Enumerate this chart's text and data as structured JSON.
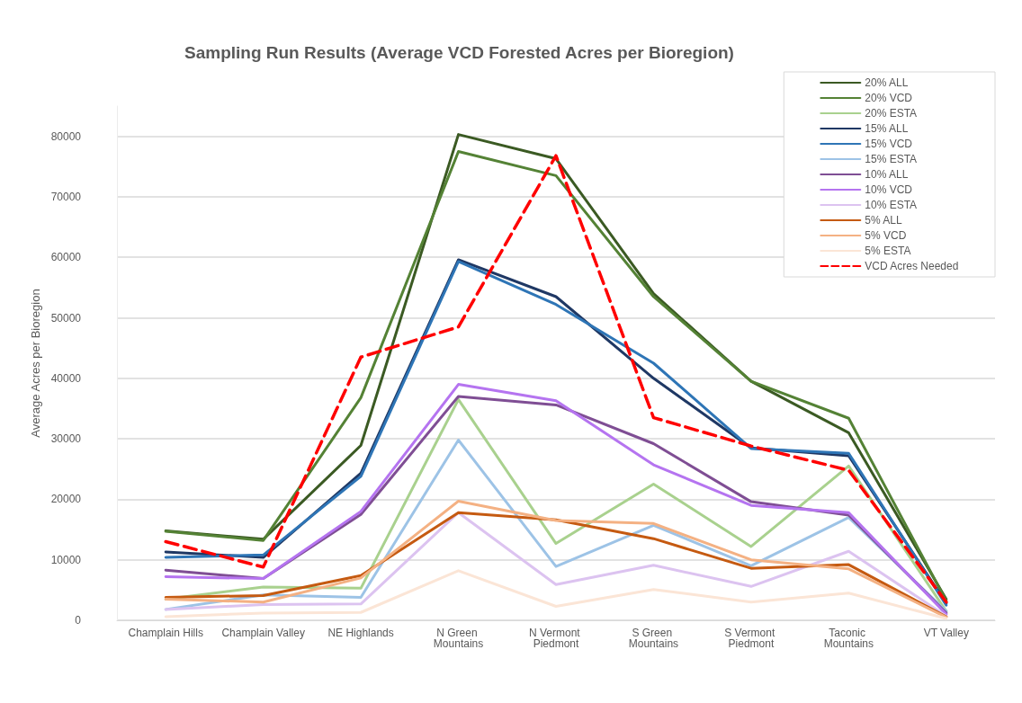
{
  "chart_data": {
    "type": "line",
    "title": "Sampling Run Results (Average VCD Forested Acres per Bioregion)",
    "ylabel": "Average Acres per Bioregion",
    "categories": [
      "Champlain Hills",
      "Champlain Valley",
      "NE Highlands",
      "N Green Mountains",
      "N Vermont Piedmont",
      "S Green Mountains",
      "S Vermont Piedmont",
      "Taconic Mountains",
      "VT Valley"
    ],
    "series": [
      {
        "name": "20% ALL",
        "color": "#3b5a23",
        "values": [
          14800,
          13400,
          28900,
          80300,
          76300,
          54000,
          39500,
          31000,
          3500
        ]
      },
      {
        "name": "20% VCD",
        "color": "#548235",
        "values": [
          14700,
          13200,
          36800,
          77500,
          73500,
          53500,
          39500,
          33400,
          3200
        ]
      },
      {
        "name": "20% ESTA",
        "color": "#a9d18e",
        "values": [
          3500,
          5500,
          5300,
          36500,
          12700,
          22500,
          12200,
          25500,
          1500
        ]
      },
      {
        "name": "15% ALL",
        "color": "#1f3864",
        "values": [
          11300,
          10400,
          24300,
          59600,
          53500,
          40000,
          28500,
          27200,
          2800
        ]
      },
      {
        "name": "15% VCD",
        "color": "#2e75b6",
        "values": [
          10400,
          10800,
          23800,
          59300,
          52200,
          42500,
          28400,
          27600,
          2500
        ]
      },
      {
        "name": "15% ESTA",
        "color": "#9dc3e6",
        "values": [
          1800,
          4200,
          3800,
          29800,
          8900,
          15700,
          9000,
          17000,
          1500
        ]
      },
      {
        "name": "10% ALL",
        "color": "#7f4e94",
        "values": [
          8300,
          6900,
          17500,
          37000,
          35600,
          29200,
          19600,
          17400,
          1200
        ]
      },
      {
        "name": "10% VCD",
        "color": "#b574f0",
        "values": [
          7200,
          6900,
          18000,
          39000,
          36300,
          25700,
          19000,
          17800,
          1000
        ]
      },
      {
        "name": "10% ESTA",
        "color": "#dcc3f0",
        "values": [
          1800,
          2600,
          2700,
          17800,
          5900,
          9100,
          5600,
          11400,
          700
        ]
      },
      {
        "name": "5% ALL",
        "color": "#c55a11",
        "values": [
          3800,
          4100,
          7400,
          17800,
          16600,
          13500,
          8600,
          9200,
          600
        ]
      },
      {
        "name": "5% VCD",
        "color": "#f4b183",
        "values": [
          3500,
          3000,
          7000,
          19700,
          16500,
          16000,
          10000,
          8500,
          500
        ]
      },
      {
        "name": "5% ESTA",
        "color": "#fbe5d6",
        "values": [
          600,
          1200,
          1300,
          8200,
          2300,
          5100,
          3000,
          4500,
          300
        ]
      },
      {
        "name": "VCD Acres Needed",
        "color": "#ff0000",
        "line_style": "dashed",
        "values": [
          13000,
          8800,
          43500,
          48500,
          76800,
          33500,
          28800,
          24800,
          3000
        ]
      }
    ],
    "ylim": [
      0,
      85000
    ],
    "yticks": [
      0,
      10000,
      20000,
      30000,
      40000,
      50000,
      60000,
      70000,
      80000
    ],
    "grid": "y",
    "legend": "top right",
    "marker": "none"
  }
}
